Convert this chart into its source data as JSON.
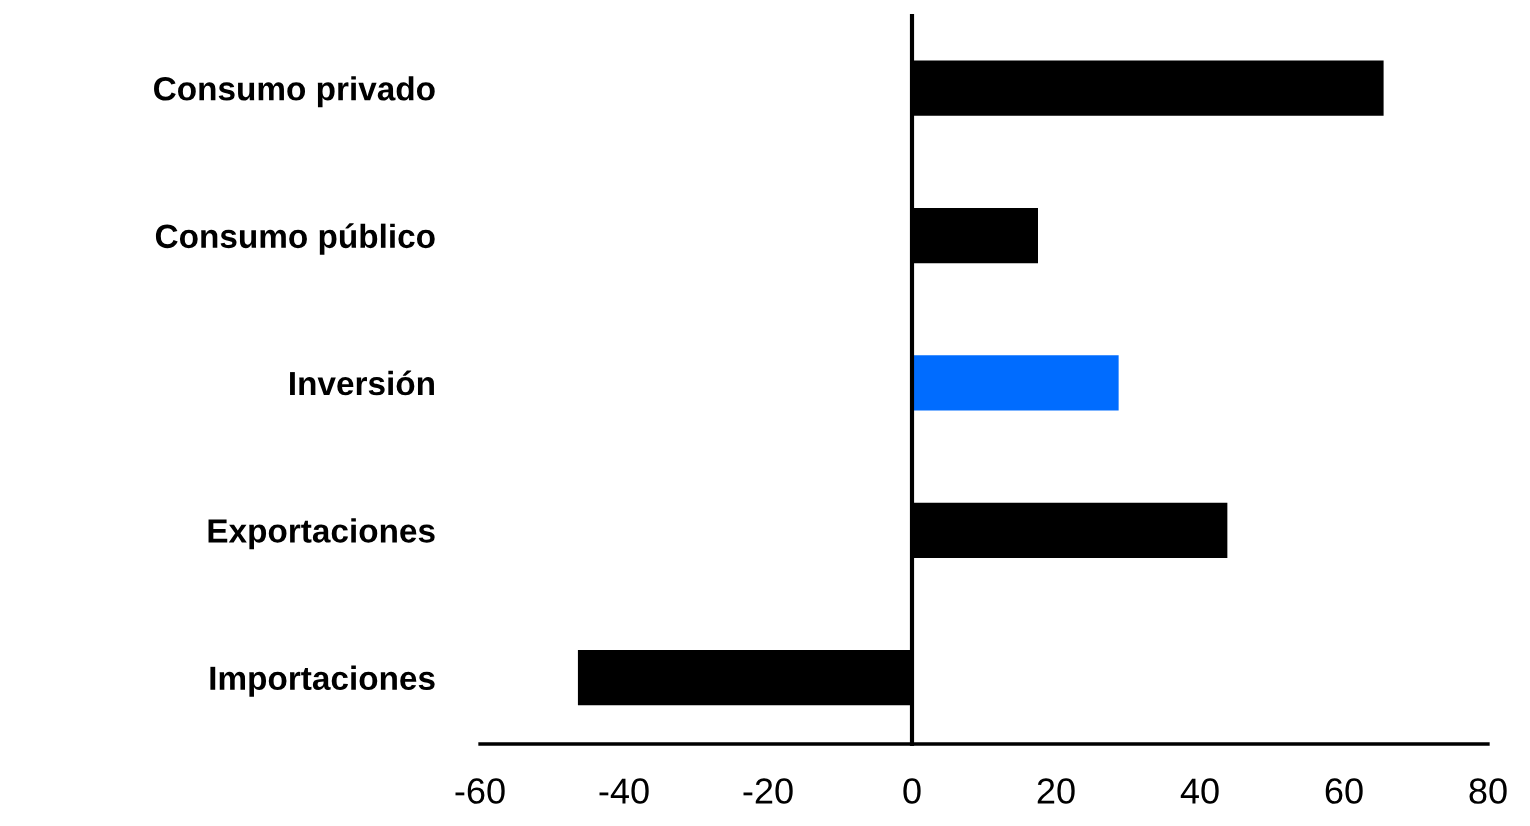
{
  "chart_data": {
    "type": "bar",
    "orientation": "horizontal",
    "categories": [
      "Consumo privado",
      "Consumo público",
      "Inversión",
      "Exportaciones",
      "Importaciones"
    ],
    "values": [
      65.5,
      17.5,
      28.7,
      43.8,
      -46.4
    ],
    "colors": [
      "#000000",
      "#000000",
      "#006cff",
      "#000000",
      "#000000"
    ],
    "xlim": [
      -60,
      80
    ],
    "xticks": [
      -60,
      -40,
      -20,
      0,
      20,
      40,
      60,
      80
    ]
  }
}
